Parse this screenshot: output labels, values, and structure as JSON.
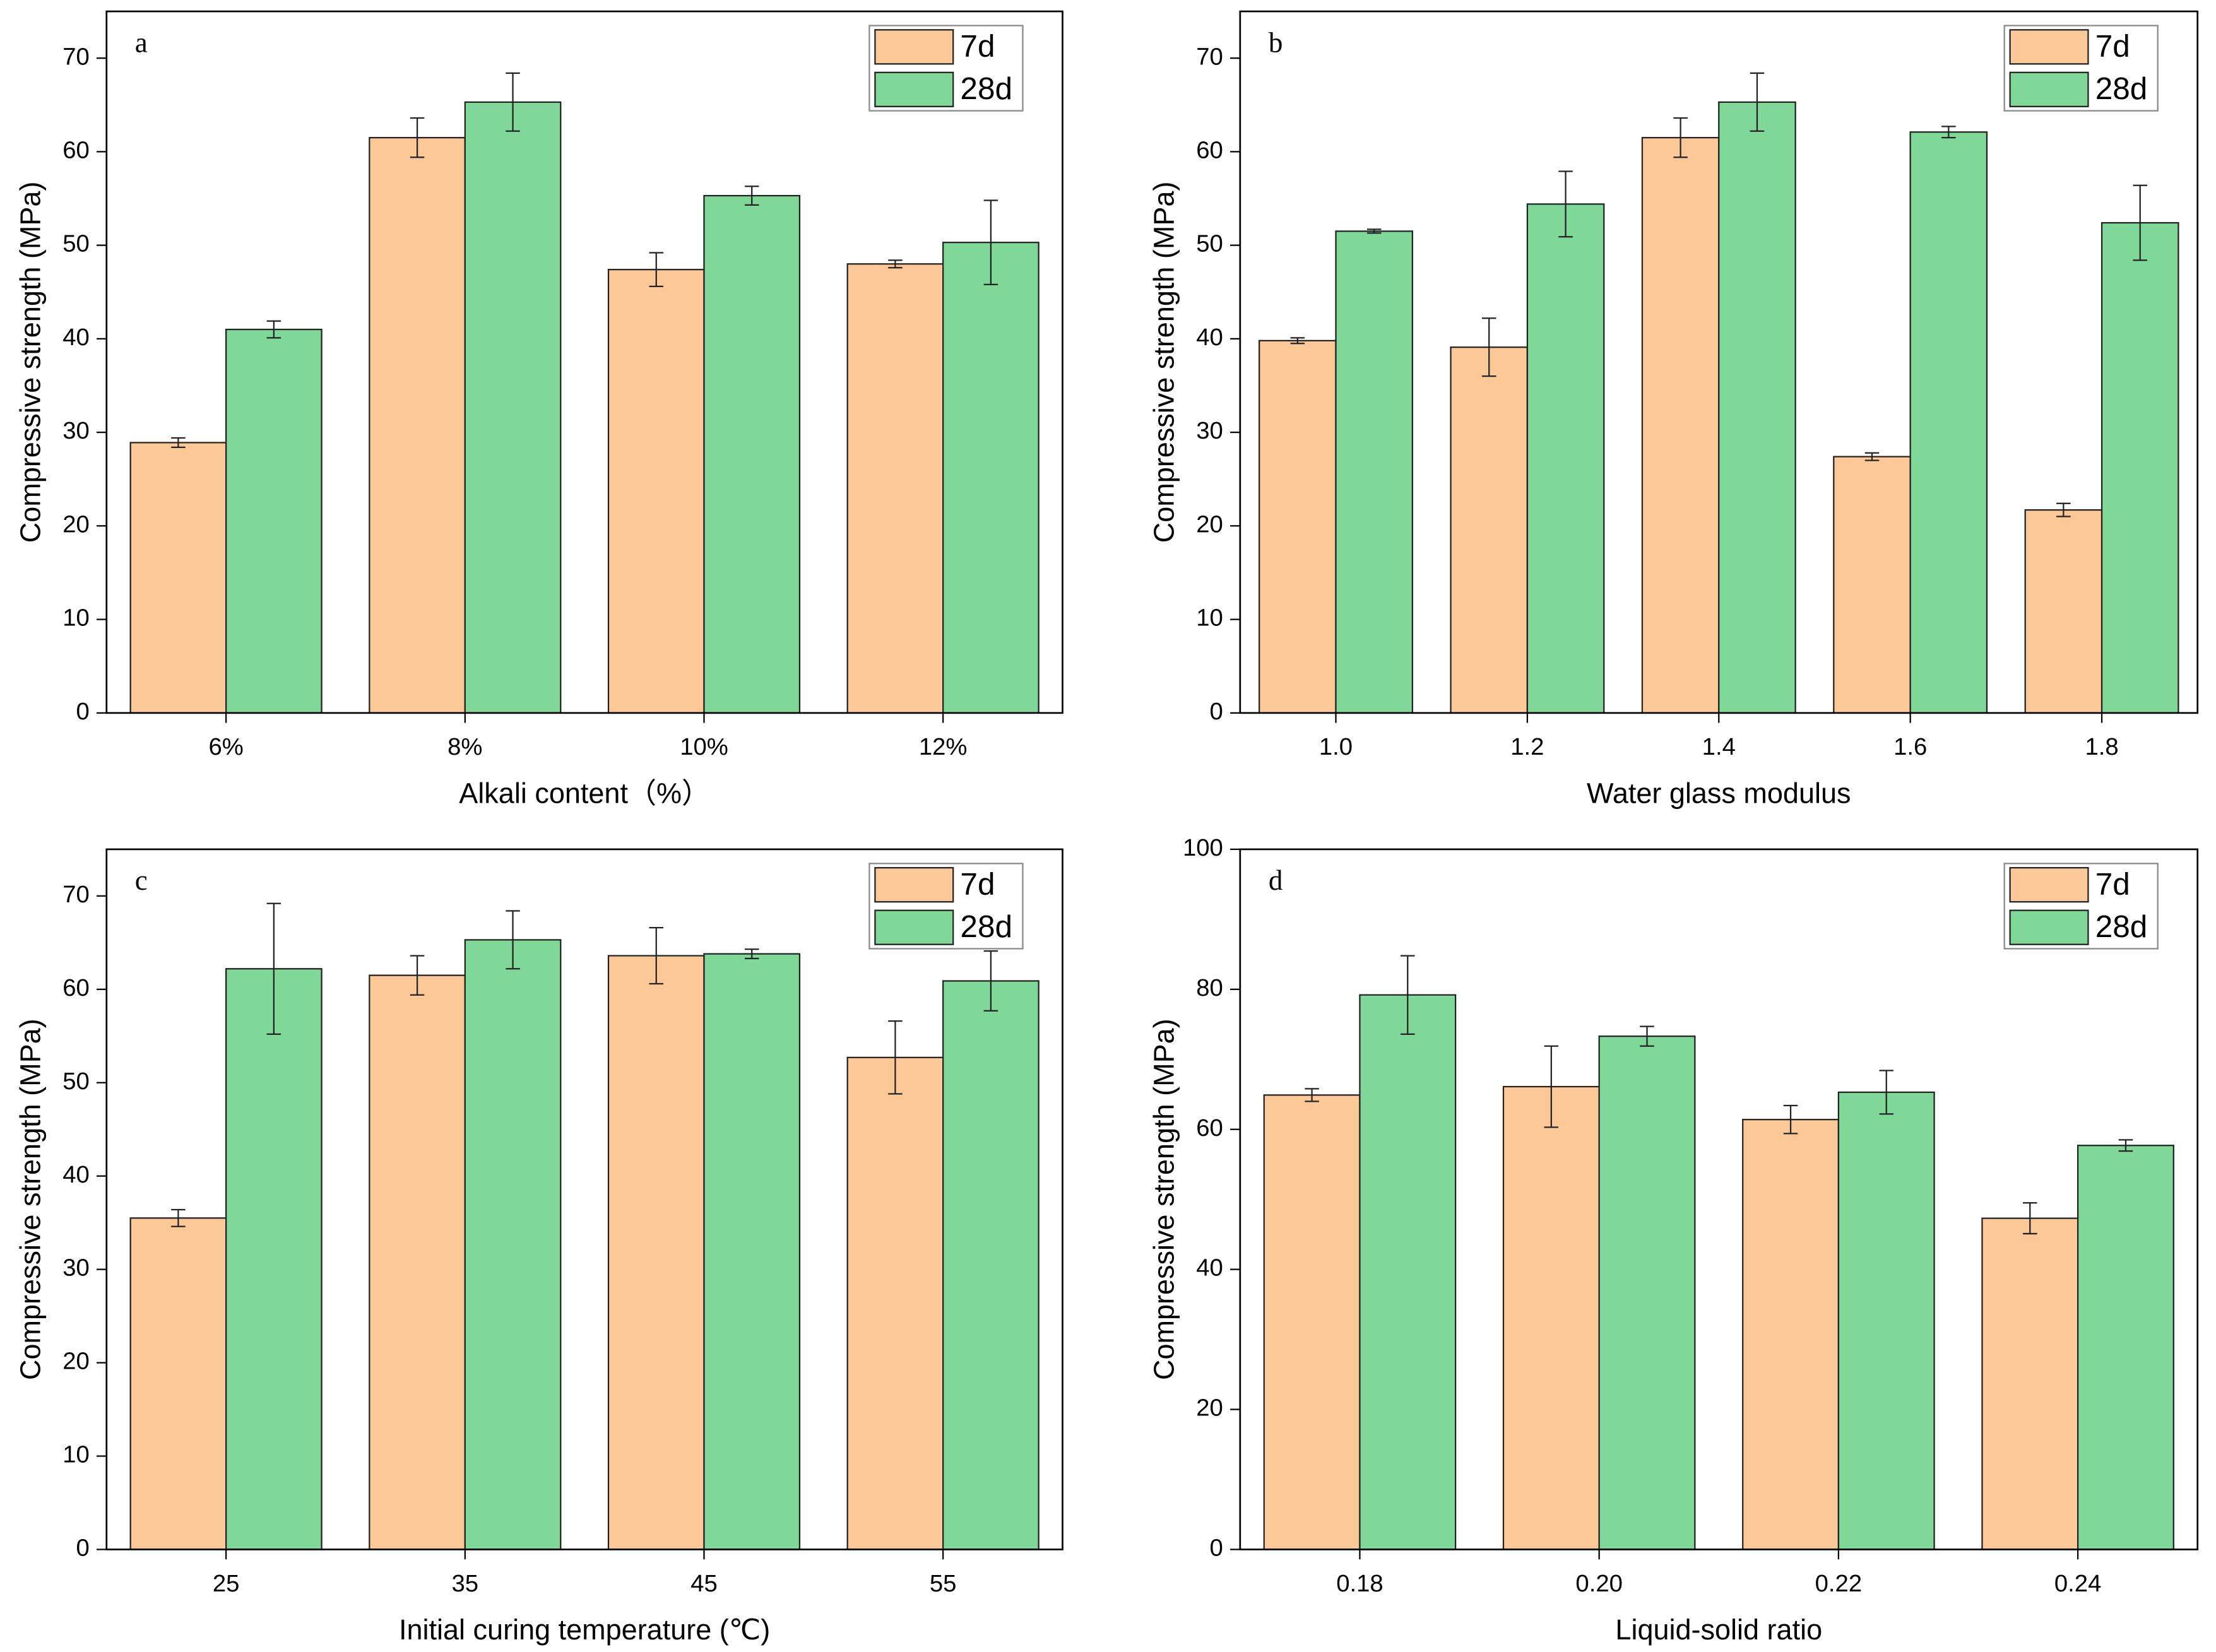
{
  "chart_data": [
    {
      "type": "bar",
      "panel": "a",
      "xlabel": "Alkali  content（%）",
      "ylabel": "Compressive strength (MPa)",
      "categories": [
        "6%",
        "8%",
        "10%",
        "12%"
      ],
      "series": [
        {
          "name": "7d",
          "color": "#fdc898",
          "values": [
            28.9,
            61.5,
            47.4,
            48.0
          ],
          "errors": [
            0.5,
            2.1,
            1.8,
            0.4
          ]
        },
        {
          "name": "28d",
          "color": "#7fd798",
          "values": [
            41.0,
            65.3,
            55.3,
            50.3
          ],
          "errors": [
            0.9,
            3.1,
            1.0,
            4.5
          ]
        }
      ],
      "ylim": [
        0,
        75
      ],
      "yticks": [
        0,
        10,
        20,
        30,
        40,
        50,
        60,
        70
      ],
      "legend": "upper right"
    },
    {
      "type": "bar",
      "panel": "b",
      "xlabel": "Water glass modulus",
      "ylabel": "Compressive strength (MPa)",
      "categories": [
        "1.0",
        "1.2",
        "1.4",
        "1.6",
        "1.8"
      ],
      "series": [
        {
          "name": "7d",
          "color": "#fdc898",
          "values": [
            39.8,
            39.1,
            61.5,
            27.4,
            21.7
          ],
          "errors": [
            0.3,
            3.1,
            2.1,
            0.4,
            0.7
          ]
        },
        {
          "name": "28d",
          "color": "#7fd798",
          "values": [
            51.5,
            54.4,
            65.3,
            62.1,
            52.4
          ],
          "errors": [
            0.2,
            3.5,
            3.1,
            0.6,
            4.0
          ]
        }
      ],
      "ylim": [
        0,
        75
      ],
      "yticks": [
        0,
        10,
        20,
        30,
        40,
        50,
        60,
        70
      ],
      "legend": "upper right"
    },
    {
      "type": "bar",
      "panel": "c",
      "xlabel": "Initial curing temperature (℃)",
      "ylabel": "Compressive strength (MPa)",
      "categories": [
        "25",
        "35",
        "45",
        "55"
      ],
      "series": [
        {
          "name": "7d",
          "color": "#fdc898",
          "values": [
            35.5,
            61.5,
            63.6,
            52.7
          ],
          "errors": [
            0.9,
            2.1,
            3.0,
            3.9
          ]
        },
        {
          "name": "28d",
          "color": "#7fd798",
          "values": [
            62.2,
            65.3,
            63.8,
            60.9
          ],
          "errors": [
            7.0,
            3.1,
            0.5,
            3.2
          ]
        }
      ],
      "ylim": [
        0,
        75
      ],
      "yticks": [
        0,
        10,
        20,
        30,
        40,
        50,
        60,
        70
      ],
      "legend": "upper right"
    },
    {
      "type": "bar",
      "panel": "d",
      "xlabel": "Liquid-solid ratio",
      "ylabel": "Compressive strength (MPa)",
      "categories": [
        "0.18",
        "0.20",
        "0.22",
        "0.24"
      ],
      "series": [
        {
          "name": "7d",
          "color": "#fdc898",
          "values": [
            64.9,
            66.1,
            61.4,
            47.3
          ],
          "errors": [
            0.9,
            5.8,
            2.0,
            2.2
          ]
        },
        {
          "name": "28d",
          "color": "#7fd798",
          "values": [
            79.2,
            73.3,
            65.3,
            57.7
          ],
          "errors": [
            5.6,
            1.4,
            3.1,
            0.8
          ]
        }
      ],
      "ylim": [
        0,
        100
      ],
      "yticks": [
        0,
        20,
        40,
        60,
        80,
        100
      ],
      "legend": "upper right"
    }
  ]
}
